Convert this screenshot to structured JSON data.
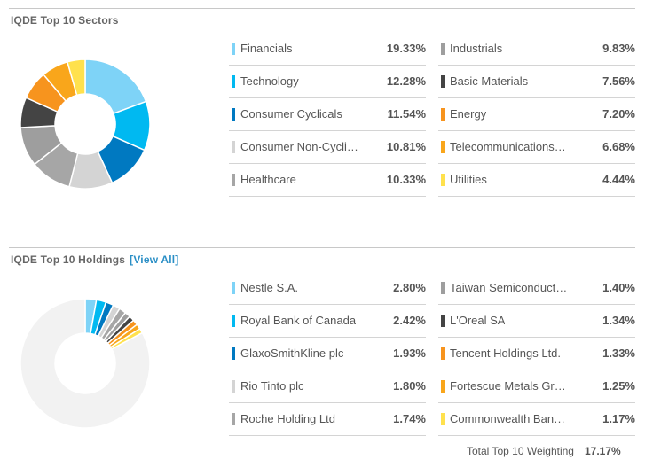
{
  "colors": [
    "#7ed3f7",
    "#00b9f1",
    "#0079c1",
    "#d4d4d4",
    "#a6a6a6",
    "#9e9e9e",
    "#444444",
    "#f7941e",
    "#f9a61b",
    "#ffe14d"
  ],
  "holdings_remainder_color": "#f2f2f2",
  "sectors": {
    "title": "IQDE Top 10 Sectors",
    "chart_data": {
      "type": "pie",
      "categories": [
        "Financials",
        "Technology",
        "Consumer Cyclicals",
        "Consumer Non-Cycli…",
        "Healthcare",
        "Industrials",
        "Basic Materials",
        "Energy",
        "Telecommunications…",
        "Utilities"
      ],
      "values": [
        19.33,
        12.28,
        11.54,
        10.81,
        10.33,
        9.83,
        7.56,
        7.2,
        6.68,
        4.44
      ]
    },
    "rows": [
      {
        "name": "Financials",
        "pct": "19.33%"
      },
      {
        "name": "Technology",
        "pct": "12.28%"
      },
      {
        "name": "Consumer Cyclicals",
        "pct": "11.54%"
      },
      {
        "name": "Consumer Non-Cycli…",
        "pct": "10.81%"
      },
      {
        "name": "Healthcare",
        "pct": "10.33%"
      },
      {
        "name": "Industrials",
        "pct": "9.83%"
      },
      {
        "name": "Basic Materials",
        "pct": "7.56%"
      },
      {
        "name": "Energy",
        "pct": "7.20%"
      },
      {
        "name": "Telecommunications…",
        "pct": "6.68%"
      },
      {
        "name": "Utilities",
        "pct": "4.44%"
      }
    ]
  },
  "holdings": {
    "title": "IQDE Top 10 Holdings",
    "view_all": "[View All]",
    "chart_data": {
      "type": "pie",
      "categories": [
        "Nestle S.A.",
        "Royal Bank of Canada",
        "GlaxoSmithKline plc",
        "Rio Tinto plc",
        "Roche Holding Ltd",
        "Taiwan Semiconduct…",
        "L'Oreal SA",
        "Tencent Holdings Ltd.",
        "Fortescue Metals Gr…",
        "Commonwealth Ban…"
      ],
      "values": [
        2.8,
        2.42,
        1.93,
        1.8,
        1.74,
        1.4,
        1.34,
        1.33,
        1.25,
        1.17
      ],
      "total": 17.17
    },
    "rows": [
      {
        "name": "Nestle S.A.",
        "pct": "2.80%"
      },
      {
        "name": "Royal Bank of Canada",
        "pct": "2.42%"
      },
      {
        "name": "GlaxoSmithKline plc",
        "pct": "1.93%"
      },
      {
        "name": "Rio Tinto plc",
        "pct": "1.80%"
      },
      {
        "name": "Roche Holding Ltd",
        "pct": "1.74%"
      },
      {
        "name": "Taiwan Semiconduct…",
        "pct": "1.40%"
      },
      {
        "name": "L'Oreal SA",
        "pct": "1.34%"
      },
      {
        "name": "Tencent Holdings Ltd.",
        "pct": "1.33%"
      },
      {
        "name": "Fortescue Metals Gr…",
        "pct": "1.25%"
      },
      {
        "name": "Commonwealth Ban…",
        "pct": "1.17%"
      }
    ],
    "total_label": "Total Top 10 Weighting",
    "total_value": "17.17%"
  }
}
